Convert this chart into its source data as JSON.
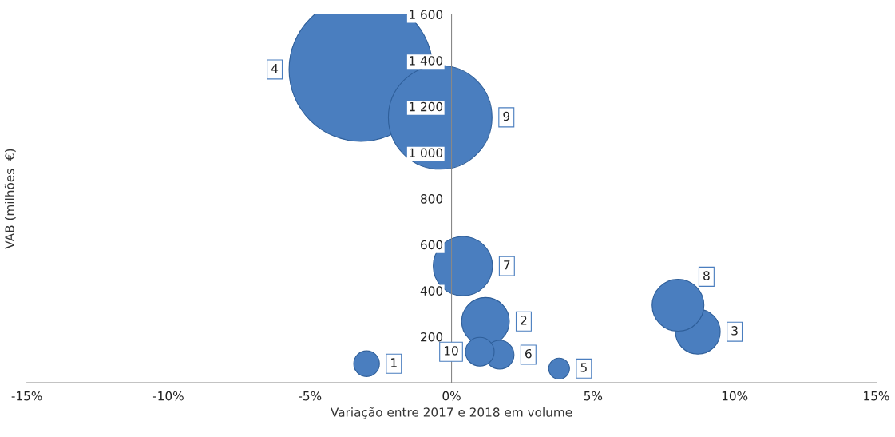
{
  "chart_data": {
    "type": "bubble",
    "xlabel": "Variação entre 2017 e 2018 em volume",
    "ylabel": "VAB (milhões  €)",
    "x": [
      -3.0,
      1.2,
      8.7,
      -3.2,
      3.8,
      1.7,
      0.4,
      8.0,
      -0.4,
      1.0
    ],
    "values": [
      83,
      267,
      222,
      1361,
      62,
      122,
      507,
      337,
      1153,
      135
    ],
    "sizes": [
      0.032,
      0.11,
      0.097,
      1,
      0.021,
      0.04,
      0.17,
      0.13,
      0.52,
      0.04
    ],
    "annotations": [
      "1",
      "2",
      "3",
      "4",
      "5",
      "6",
      "7",
      "8",
      "9",
      "10"
    ],
    "color": "#4a7ebf",
    "xlim": [
      -15,
      15
    ],
    "xticks": [
      {
        "value": -15,
        "label": "-15%"
      },
      {
        "value": -10,
        "label": "-10%"
      },
      {
        "value": -5,
        "label": "-5%"
      },
      {
        "value": 0,
        "label": "0%"
      },
      {
        "value": 5,
        "label": "5%"
      },
      {
        "value": 10,
        "label": "10%"
      },
      {
        "value": 15,
        "label": "15%"
      }
    ],
    "ylim": [
      0,
      1600
    ],
    "yticks": [
      {
        "value": 0,
        "label": null
      },
      200,
      400,
      600,
      800,
      {
        "value": 1000,
        "label": "1 000"
      },
      {
        "value": 1200,
        "label": "1 200"
      },
      {
        "value": 1400,
        "label": "1 400"
      },
      {
        "value": 1600,
        "label": "1 600"
      }
    ],
    "grid": false,
    "legend": false
  }
}
